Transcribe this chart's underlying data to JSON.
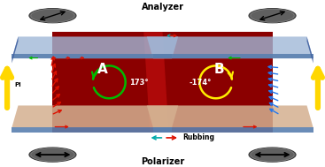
{
  "title_top": "Analyzer",
  "title_bottom": "Polarizer",
  "label_A": "A",
  "label_B": "B",
  "label_PI": "PI",
  "angle_A": "173°",
  "angle_B": "-174°",
  "rubbing_label": "Rubbing",
  "bg_color": "#8B0000",
  "bg_color_light": "#C00000",
  "plate_top_color": "#a0b8d8",
  "plate_bottom_color": "#d4b090",
  "plate_edge_color": "#5a80b0",
  "plate_face_color": "#b8d0e8",
  "analyzer_color": "#606060",
  "polarizer_color": "#606060",
  "yellow_arrow_color": "#FFD700",
  "green_arrow_color": "#00BB00",
  "red_arrow_color": "#DD1100",
  "blue_arrow_color": "#2277EE",
  "cyan_arrow_color": "#00AAAA",
  "figsize": [
    3.67,
    1.89
  ],
  "dpi": 100
}
